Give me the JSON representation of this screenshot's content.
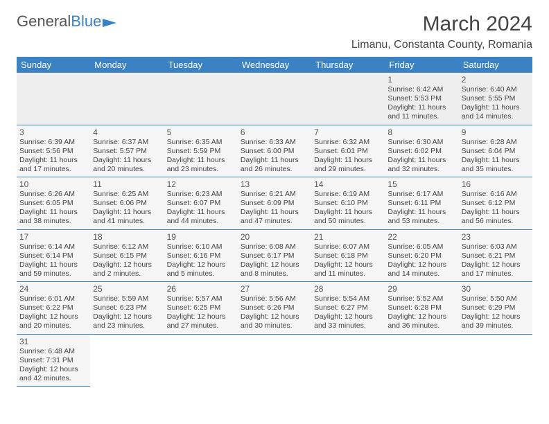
{
  "logo": {
    "text1": "General",
    "text2": "Blue"
  },
  "title": "March 2024",
  "location": "Limanu, Constanta County, Romania",
  "colors": {
    "header_bg": "#3b82c4",
    "header_fg": "#ffffff",
    "border": "#3b82c4"
  },
  "weekdays": [
    "Sunday",
    "Monday",
    "Tuesday",
    "Wednesday",
    "Thursday",
    "Friday",
    "Saturday"
  ],
  "weeks": [
    [
      null,
      null,
      null,
      null,
      null,
      {
        "n": "1",
        "sr": "Sunrise: 6:42 AM",
        "ss": "Sunset: 5:53 PM",
        "d1": "Daylight: 11 hours",
        "d2": "and 11 minutes."
      },
      {
        "n": "2",
        "sr": "Sunrise: 6:40 AM",
        "ss": "Sunset: 5:55 PM",
        "d1": "Daylight: 11 hours",
        "d2": "and 14 minutes."
      }
    ],
    [
      {
        "n": "3",
        "sr": "Sunrise: 6:39 AM",
        "ss": "Sunset: 5:56 PM",
        "d1": "Daylight: 11 hours",
        "d2": "and 17 minutes."
      },
      {
        "n": "4",
        "sr": "Sunrise: 6:37 AM",
        "ss": "Sunset: 5:57 PM",
        "d1": "Daylight: 11 hours",
        "d2": "and 20 minutes."
      },
      {
        "n": "5",
        "sr": "Sunrise: 6:35 AM",
        "ss": "Sunset: 5:59 PM",
        "d1": "Daylight: 11 hours",
        "d2": "and 23 minutes."
      },
      {
        "n": "6",
        "sr": "Sunrise: 6:33 AM",
        "ss": "Sunset: 6:00 PM",
        "d1": "Daylight: 11 hours",
        "d2": "and 26 minutes."
      },
      {
        "n": "7",
        "sr": "Sunrise: 6:32 AM",
        "ss": "Sunset: 6:01 PM",
        "d1": "Daylight: 11 hours",
        "d2": "and 29 minutes."
      },
      {
        "n": "8",
        "sr": "Sunrise: 6:30 AM",
        "ss": "Sunset: 6:02 PM",
        "d1": "Daylight: 11 hours",
        "d2": "and 32 minutes."
      },
      {
        "n": "9",
        "sr": "Sunrise: 6:28 AM",
        "ss": "Sunset: 6:04 PM",
        "d1": "Daylight: 11 hours",
        "d2": "and 35 minutes."
      }
    ],
    [
      {
        "n": "10",
        "sr": "Sunrise: 6:26 AM",
        "ss": "Sunset: 6:05 PM",
        "d1": "Daylight: 11 hours",
        "d2": "and 38 minutes."
      },
      {
        "n": "11",
        "sr": "Sunrise: 6:25 AM",
        "ss": "Sunset: 6:06 PM",
        "d1": "Daylight: 11 hours",
        "d2": "and 41 minutes."
      },
      {
        "n": "12",
        "sr": "Sunrise: 6:23 AM",
        "ss": "Sunset: 6:07 PM",
        "d1": "Daylight: 11 hours",
        "d2": "and 44 minutes."
      },
      {
        "n": "13",
        "sr": "Sunrise: 6:21 AM",
        "ss": "Sunset: 6:09 PM",
        "d1": "Daylight: 11 hours",
        "d2": "and 47 minutes."
      },
      {
        "n": "14",
        "sr": "Sunrise: 6:19 AM",
        "ss": "Sunset: 6:10 PM",
        "d1": "Daylight: 11 hours",
        "d2": "and 50 minutes."
      },
      {
        "n": "15",
        "sr": "Sunrise: 6:17 AM",
        "ss": "Sunset: 6:11 PM",
        "d1": "Daylight: 11 hours",
        "d2": "and 53 minutes."
      },
      {
        "n": "16",
        "sr": "Sunrise: 6:16 AM",
        "ss": "Sunset: 6:12 PM",
        "d1": "Daylight: 11 hours",
        "d2": "and 56 minutes."
      }
    ],
    [
      {
        "n": "17",
        "sr": "Sunrise: 6:14 AM",
        "ss": "Sunset: 6:14 PM",
        "d1": "Daylight: 11 hours",
        "d2": "and 59 minutes."
      },
      {
        "n": "18",
        "sr": "Sunrise: 6:12 AM",
        "ss": "Sunset: 6:15 PM",
        "d1": "Daylight: 12 hours",
        "d2": "and 2 minutes."
      },
      {
        "n": "19",
        "sr": "Sunrise: 6:10 AM",
        "ss": "Sunset: 6:16 PM",
        "d1": "Daylight: 12 hours",
        "d2": "and 5 minutes."
      },
      {
        "n": "20",
        "sr": "Sunrise: 6:08 AM",
        "ss": "Sunset: 6:17 PM",
        "d1": "Daylight: 12 hours",
        "d2": "and 8 minutes."
      },
      {
        "n": "21",
        "sr": "Sunrise: 6:07 AM",
        "ss": "Sunset: 6:18 PM",
        "d1": "Daylight: 12 hours",
        "d2": "and 11 minutes."
      },
      {
        "n": "22",
        "sr": "Sunrise: 6:05 AM",
        "ss": "Sunset: 6:20 PM",
        "d1": "Daylight: 12 hours",
        "d2": "and 14 minutes."
      },
      {
        "n": "23",
        "sr": "Sunrise: 6:03 AM",
        "ss": "Sunset: 6:21 PM",
        "d1": "Daylight: 12 hours",
        "d2": "and 17 minutes."
      }
    ],
    [
      {
        "n": "24",
        "sr": "Sunrise: 6:01 AM",
        "ss": "Sunset: 6:22 PM",
        "d1": "Daylight: 12 hours",
        "d2": "and 20 minutes."
      },
      {
        "n": "25",
        "sr": "Sunrise: 5:59 AM",
        "ss": "Sunset: 6:23 PM",
        "d1": "Daylight: 12 hours",
        "d2": "and 23 minutes."
      },
      {
        "n": "26",
        "sr": "Sunrise: 5:57 AM",
        "ss": "Sunset: 6:25 PM",
        "d1": "Daylight: 12 hours",
        "d2": "and 27 minutes."
      },
      {
        "n": "27",
        "sr": "Sunrise: 5:56 AM",
        "ss": "Sunset: 6:26 PM",
        "d1": "Daylight: 12 hours",
        "d2": "and 30 minutes."
      },
      {
        "n": "28",
        "sr": "Sunrise: 5:54 AM",
        "ss": "Sunset: 6:27 PM",
        "d1": "Daylight: 12 hours",
        "d2": "and 33 minutes."
      },
      {
        "n": "29",
        "sr": "Sunrise: 5:52 AM",
        "ss": "Sunset: 6:28 PM",
        "d1": "Daylight: 12 hours",
        "d2": "and 36 minutes."
      },
      {
        "n": "30",
        "sr": "Sunrise: 5:50 AM",
        "ss": "Sunset: 6:29 PM",
        "d1": "Daylight: 12 hours",
        "d2": "and 39 minutes."
      }
    ],
    [
      {
        "n": "31",
        "sr": "Sunrise: 6:48 AM",
        "ss": "Sunset: 7:31 PM",
        "d1": "Daylight: 12 hours",
        "d2": "and 42 minutes."
      },
      null,
      null,
      null,
      null,
      null,
      null
    ]
  ]
}
